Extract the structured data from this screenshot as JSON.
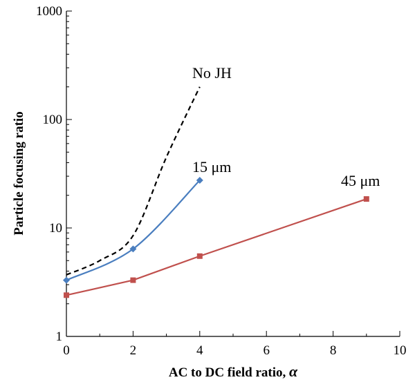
{
  "chart_data": {
    "type": "line",
    "title": "",
    "xlabel": "AC to DC field ratio, ",
    "xlabel_symbol": "α",
    "ylabel": "Particle focusing ratio",
    "xlim": [
      0,
      10
    ],
    "ylim": [
      1,
      1000
    ],
    "yscale": "log",
    "grid": false,
    "xticks": [
      "0",
      "2",
      "4",
      "6",
      "8",
      "10"
    ],
    "yticks": [
      "1",
      "10",
      "100",
      "1000"
    ],
    "series": [
      {
        "label": "No JH",
        "color": "#000000",
        "style": "dashed",
        "marker": "none",
        "x": [
          0,
          1,
          2,
          3,
          4
        ],
        "y": [
          3.7,
          5.0,
          8.5,
          45,
          200
        ]
      },
      {
        "label": "15 μm",
        "color": "#4a7ebf",
        "style": "solid",
        "marker": "diamond",
        "x": [
          0,
          2,
          4
        ],
        "y": [
          3.3,
          6.4,
          27.5
        ]
      },
      {
        "label": "45 μm",
        "color": "#c0504d",
        "style": "solid",
        "marker": "square",
        "x": [
          0,
          2,
          4,
          9
        ],
        "y": [
          2.4,
          3.3,
          5.5,
          18.5
        ]
      }
    ]
  }
}
